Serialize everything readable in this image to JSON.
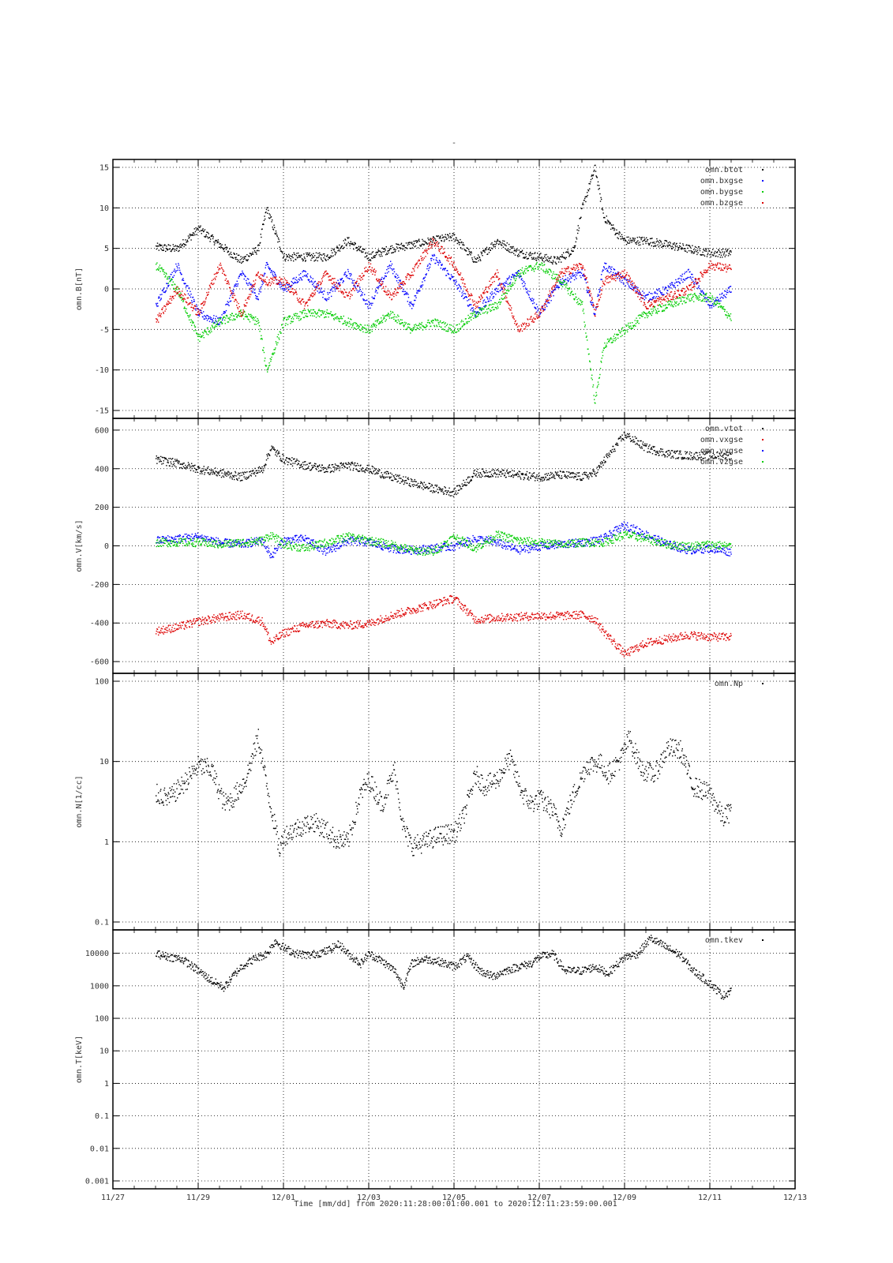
{
  "figure": {
    "title": "-",
    "xaxis_caption": "Time [mm/dd]  from 2020:11:28:00:01:00.001  to  2020:12:11:23:59:00.001"
  },
  "chart_data": [
    {
      "type": "scatter",
      "ylabel": "omn.B[nT]",
      "ylim": [
        -15,
        15
      ],
      "yscale": "linear",
      "yticks": [
        "15",
        "10",
        "5",
        "0",
        "-5",
        "-10",
        "-15"
      ],
      "xticks": [
        "11/27",
        "11/29",
        "12/01",
        "12/03",
        "12/05",
        "12/07",
        "12/09",
        "12/11",
        "12/13"
      ],
      "xlim_days": [
        0,
        16
      ],
      "grid": true,
      "legend_position": "top-right",
      "series": [
        {
          "name": "omn.btot",
          "color": "#000000",
          "x": [
            1,
            1.5,
            2,
            2.5,
            3,
            3.4,
            3.6,
            4,
            4.5,
            5,
            5.5,
            6,
            6.5,
            7,
            7.5,
            8,
            8.5,
            9,
            9.5,
            10,
            10.4,
            10.8,
            11,
            11.3,
            11.5,
            11.8,
            12,
            12.5,
            13,
            13.5,
            14,
            14.5
          ],
          "values": [
            5.2,
            5,
            7.5,
            5.5,
            3.5,
            5,
            10,
            4,
            4,
            4,
            6,
            4,
            5,
            5.5,
            6,
            6.5,
            3.5,
            6,
            4.5,
            4,
            3.5,
            5,
            10,
            15,
            9,
            7,
            6,
            6,
            5.5,
            5,
            4.5,
            4.5
          ]
        },
        {
          "name": "omn.bxgse",
          "color": "#0000ff",
          "x": [
            1,
            1.5,
            2,
            2.5,
            3,
            3.4,
            3.6,
            4,
            4.5,
            5,
            5.5,
            6,
            6.5,
            7,
            7.5,
            8,
            8.5,
            9,
            9.5,
            10,
            10.5,
            11,
            11.3,
            11.5,
            12,
            12.5,
            13,
            13.5,
            14,
            14.5
          ],
          "values": [
            -2,
            3,
            -3,
            -4,
            2,
            -1,
            3,
            0,
            2,
            -1,
            2,
            -2,
            3,
            -2,
            4,
            1,
            -3,
            0,
            2,
            -3,
            1,
            2,
            -3,
            3,
            1,
            -1,
            0,
            2,
            -2,
            0
          ]
        },
        {
          "name": "omn.bygse",
          "color": "#00cc00",
          "x": [
            1,
            1.5,
            2,
            2.5,
            3,
            3.4,
            3.6,
            4,
            4.5,
            5,
            5.5,
            6,
            6.5,
            7,
            7.5,
            8,
            8.5,
            9,
            9.5,
            10,
            10.5,
            11,
            11.3,
            11.5,
            12,
            12.5,
            13,
            13.5,
            14,
            14.5
          ],
          "values": [
            3,
            0,
            -6,
            -4,
            -3,
            -4,
            -10,
            -4,
            -3,
            -3,
            -4,
            -5,
            -3,
            -5,
            -4,
            -5,
            -3,
            -2,
            2,
            3,
            1,
            -2,
            -14,
            -7,
            -5,
            -3,
            -2,
            -1,
            -1,
            -3.5
          ]
        },
        {
          "name": "omn.bzgse",
          "color": "#dd0000",
          "x": [
            1,
            1.5,
            2,
            2.5,
            3,
            3.4,
            3.6,
            4,
            4.5,
            5,
            5.5,
            6,
            6.5,
            7,
            7.5,
            8,
            8.5,
            9,
            9.5,
            10,
            10.5,
            11,
            11.3,
            11.5,
            12,
            12.5,
            13,
            13.5,
            14,
            14.5
          ],
          "values": [
            -4,
            0,
            -3,
            3,
            -3,
            2,
            1,
            1,
            -2,
            2,
            -1,
            3,
            -1,
            2,
            6,
            3,
            -2,
            2,
            -5,
            -3,
            2,
            3,
            -3,
            1,
            2,
            -2,
            -1,
            0,
            3,
            2.5
          ]
        }
      ],
      "legend": [
        "omn.btot",
        "omn.bxgse",
        "omn.bygse",
        "omn.bzgse"
      ]
    },
    {
      "type": "scatter",
      "ylabel": "omn.V[km/s]",
      "ylim": [
        -620,
        620
      ],
      "yscale": "linear",
      "yticks": [
        "600",
        "400",
        "200",
        "0",
        "-200",
        "-400",
        "-600"
      ],
      "xticks": [
        "11/27",
        "11/29",
        "12/01",
        "12/03",
        "12/05",
        "12/07",
        "12/09",
        "12/11",
        "12/13"
      ],
      "xlim_days": [
        0,
        16
      ],
      "grid": true,
      "legend_position": "top-right",
      "series": [
        {
          "name": "omn.vtot",
          "color": "#000000",
          "x": [
            1,
            1.5,
            2,
            2.5,
            3,
            3.5,
            3.7,
            4,
            4.5,
            5,
            5.5,
            6,
            6.5,
            7,
            7.5,
            8,
            8.5,
            9,
            9.5,
            10,
            10.5,
            11,
            11.3,
            11.5,
            12,
            12.5,
            13,
            13.5,
            14,
            14.5
          ],
          "values": [
            450,
            430,
            400,
            380,
            360,
            400,
            510,
            450,
            420,
            400,
            420,
            400,
            360,
            330,
            300,
            280,
            380,
            380,
            370,
            360,
            370,
            360,
            380,
            440,
            580,
            510,
            480,
            470,
            470,
            470
          ]
        },
        {
          "name": "omn.vxgse",
          "color": "#dd0000",
          "x": [
            1,
            1.5,
            2,
            2.5,
            3,
            3.5,
            3.7,
            4,
            4.5,
            5,
            5.5,
            6,
            6.5,
            7,
            7.5,
            8,
            8.5,
            9,
            9.5,
            10,
            10.5,
            11,
            11.3,
            11.5,
            12,
            12.5,
            13,
            13.5,
            14,
            14.5
          ],
          "values": [
            -440,
            -420,
            -390,
            -370,
            -355,
            -390,
            -500,
            -450,
            -410,
            -400,
            -410,
            -400,
            -360,
            -330,
            -300,
            -270,
            -380,
            -370,
            -365,
            -360,
            -360,
            -355,
            -380,
            -440,
            -560,
            -500,
            -480,
            -460,
            -470,
            -470
          ]
        },
        {
          "name": "omn.vygse",
          "color": "#0000ff",
          "x": [
            1,
            1.5,
            2,
            2.5,
            3,
            3.5,
            3.7,
            4,
            4.5,
            5,
            5.5,
            6,
            6.5,
            7,
            7.5,
            8,
            8.5,
            9,
            9.5,
            10,
            10.5,
            11,
            11.3,
            11.5,
            12,
            12.5,
            13,
            13.5,
            14,
            14.5
          ],
          "values": [
            30,
            40,
            50,
            20,
            10,
            30,
            -50,
            30,
            40,
            -30,
            30,
            20,
            -10,
            -20,
            -10,
            0,
            40,
            20,
            -20,
            0,
            10,
            20,
            30,
            40,
            110,
            60,
            10,
            -20,
            -10,
            -30
          ]
        },
        {
          "name": "omn.vzgse",
          "color": "#00cc00",
          "x": [
            1,
            1.5,
            2,
            2.5,
            3,
            3.5,
            3.7,
            4,
            4.5,
            5,
            5.5,
            6,
            6.5,
            7,
            7.5,
            8,
            8.5,
            9,
            9.5,
            10,
            10.5,
            11,
            11.3,
            11.5,
            12,
            12.5,
            13,
            13.5,
            14,
            14.5
          ],
          "values": [
            20,
            20,
            20,
            10,
            20,
            30,
            60,
            10,
            -10,
            20,
            50,
            30,
            10,
            -20,
            -30,
            50,
            -10,
            60,
            30,
            20,
            10,
            20,
            20,
            20,
            60,
            40,
            10,
            0,
            10,
            0
          ]
        }
      ],
      "legend": [
        "omn.vtot",
        "omn.vxgse",
        "omn.vygse",
        "omn.vzgse"
      ]
    },
    {
      "type": "scatter",
      "ylabel": "omn.N[1/cc]",
      "ylim": [
        0.1,
        100
      ],
      "yscale": "log",
      "yticks": [
        "100",
        "10",
        "1",
        "0.1"
      ],
      "xticks": [
        "11/27",
        "11/29",
        "12/01",
        "12/03",
        "12/05",
        "12/07",
        "12/09",
        "12/11",
        "12/13"
      ],
      "xlim_days": [
        0,
        16
      ],
      "grid": true,
      "legend_position": "top-right",
      "series": [
        {
          "name": "omn.Np",
          "color": "#000000",
          "x": [
            1,
            1.3,
            1.6,
            2,
            2.3,
            2.6,
            2.8,
            3.1,
            3.4,
            3.6,
            3.9,
            4,
            4.3,
            4.7,
            5,
            5.2,
            5.5,
            5.8,
            6,
            6.3,
            6.6,
            6.8,
            7,
            7.3,
            7.6,
            8,
            8.2,
            8.5,
            8.7,
            9,
            9.3,
            9.6,
            9.8,
            10,
            10.3,
            10.5,
            10.8,
            11.1,
            11.4,
            11.6,
            11.9,
            12.1,
            12.4,
            12.7,
            13,
            13.3,
            13.6,
            14,
            14.3,
            14.5
          ],
          "values": [
            4,
            3.5,
            5,
            9,
            8,
            3,
            3.5,
            6,
            20,
            5,
            0.8,
            1.2,
            1.5,
            1.8,
            1.4,
            1.1,
            1,
            4,
            6,
            3,
            8,
            1.5,
            0.9,
            1,
            1.2,
            1.3,
            2,
            7,
            5,
            6,
            11,
            4,
            3,
            3.5,
            2.5,
            1.5,
            4,
            9,
            10,
            7,
            11,
            20,
            8,
            7,
            15,
            14,
            5,
            4,
            2,
            2.5
          ]
        }
      ],
      "legend": [
        "omn.Np"
      ]
    },
    {
      "type": "scatter",
      "ylabel": "omn.T[keV]",
      "ylim": [
        0.001,
        30000
      ],
      "yscale": "log",
      "yticks": [
        "10000",
        "1000",
        "100",
        "10",
        "1",
        "0.1",
        "0.01",
        "0.001"
      ],
      "xticks": [
        "11/27",
        "11/29",
        "12/01",
        "12/03",
        "12/05",
        "12/07",
        "12/09",
        "12/11",
        "12/13"
      ],
      "xlim_days": [
        0,
        16
      ],
      "grid": true,
      "legend_position": "top-right",
      "series": [
        {
          "name": "omn.tkev",
          "color": "#000000",
          "x": [
            1,
            1.3,
            1.6,
            2,
            2.3,
            2.6,
            2.8,
            3,
            3.3,
            3.6,
            3.8,
            4,
            4.3,
            4.6,
            5,
            5.3,
            5.5,
            5.8,
            6,
            6.3,
            6.6,
            6.8,
            7,
            7.3,
            7.6,
            8,
            8.3,
            8.6,
            8.9,
            9.2,
            9.5,
            9.8,
            10,
            10.3,
            10.6,
            11,
            11.3,
            11.6,
            12,
            12.3,
            12.6,
            13,
            13.3,
            13.6,
            14,
            14.3,
            14.5
          ],
          "values": [
            10000,
            8000,
            7000,
            3000,
            1500,
            900,
            2000,
            4000,
            7000,
            10000,
            25000,
            15000,
            10000,
            9000,
            12000,
            20000,
            10000,
            5000,
            10000,
            6000,
            3000,
            1000,
            5000,
            7000,
            6000,
            4000,
            8000,
            3000,
            2000,
            3000,
            4000,
            5000,
            8000,
            10000,
            3000,
            3000,
            4000,
            2500,
            8000,
            10000,
            30000,
            15000,
            9000,
            3000,
            1200,
            500,
            800
          ]
        }
      ],
      "legend": [
        "omn.tkev"
      ]
    }
  ]
}
